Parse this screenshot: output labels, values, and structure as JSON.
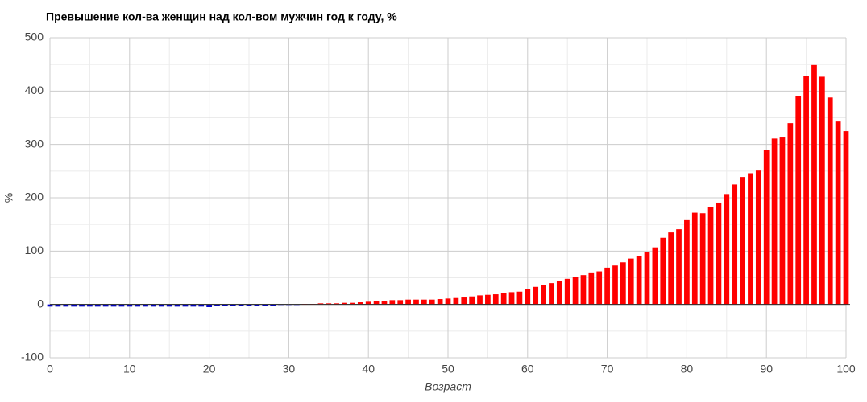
{
  "chart_data": {
    "type": "bar",
    "title": "Превышение кол-ва женщин над кол-вом мужчин год к году, %",
    "x_label": "Возраст",
    "y_label": "%",
    "x": [
      0,
      1,
      2,
      3,
      4,
      5,
      6,
      7,
      8,
      9,
      10,
      11,
      12,
      13,
      14,
      15,
      16,
      17,
      18,
      19,
      20,
      21,
      22,
      23,
      24,
      25,
      26,
      27,
      28,
      29,
      30,
      31,
      32,
      33,
      34,
      35,
      36,
      37,
      38,
      39,
      40,
      41,
      42,
      43,
      44,
      45,
      46,
      47,
      48,
      49,
      50,
      51,
      52,
      53,
      54,
      55,
      56,
      57,
      58,
      59,
      60,
      61,
      62,
      63,
      64,
      65,
      66,
      67,
      68,
      69,
      70,
      71,
      72,
      73,
      74,
      75,
      76,
      77,
      78,
      79,
      80,
      81,
      82,
      83,
      84,
      85,
      86,
      87,
      88,
      89,
      90,
      91,
      92,
      93,
      94,
      95,
      96,
      97,
      98,
      99,
      100
    ],
    "values": [
      -4,
      -4,
      -4,
      -4,
      -4,
      -4,
      -4,
      -4,
      -4,
      -4,
      -4,
      -4,
      -4,
      -4,
      -4,
      -4,
      -4,
      -4,
      -4,
      -4,
      -5,
      -3,
      -3,
      -3,
      -3,
      -2,
      -2,
      -2,
      -2,
      -1,
      -1,
      -1,
      1,
      1,
      2,
      2,
      2,
      3,
      3,
      4,
      5,
      6,
      7,
      8,
      8,
      9,
      9,
      9,
      9,
      10,
      11,
      12,
      13,
      15,
      17,
      18,
      19,
      21,
      23,
      24,
      29,
      33,
      36,
      40,
      44,
      48,
      52,
      55,
      60,
      62,
      69,
      73,
      79,
      86,
      91,
      98,
      107,
      125,
      135,
      141,
      158,
      172,
      171,
      182,
      191,
      207,
      225,
      239,
      246,
      251,
      290,
      311,
      313,
      340,
      390,
      428,
      449,
      427,
      388,
      343,
      325
    ],
    "color": "#ff0000",
    "negative_color": "#0000cc",
    "xlim": [
      0,
      100
    ],
    "xticks": [
      0,
      10,
      20,
      30,
      40,
      50,
      60,
      70,
      80,
      90,
      100
    ],
    "ylim": [
      -100,
      500
    ],
    "yticks": [
      -100,
      0,
      100,
      200,
      300,
      400,
      500
    ],
    "grid": true,
    "minor_grid": true
  }
}
